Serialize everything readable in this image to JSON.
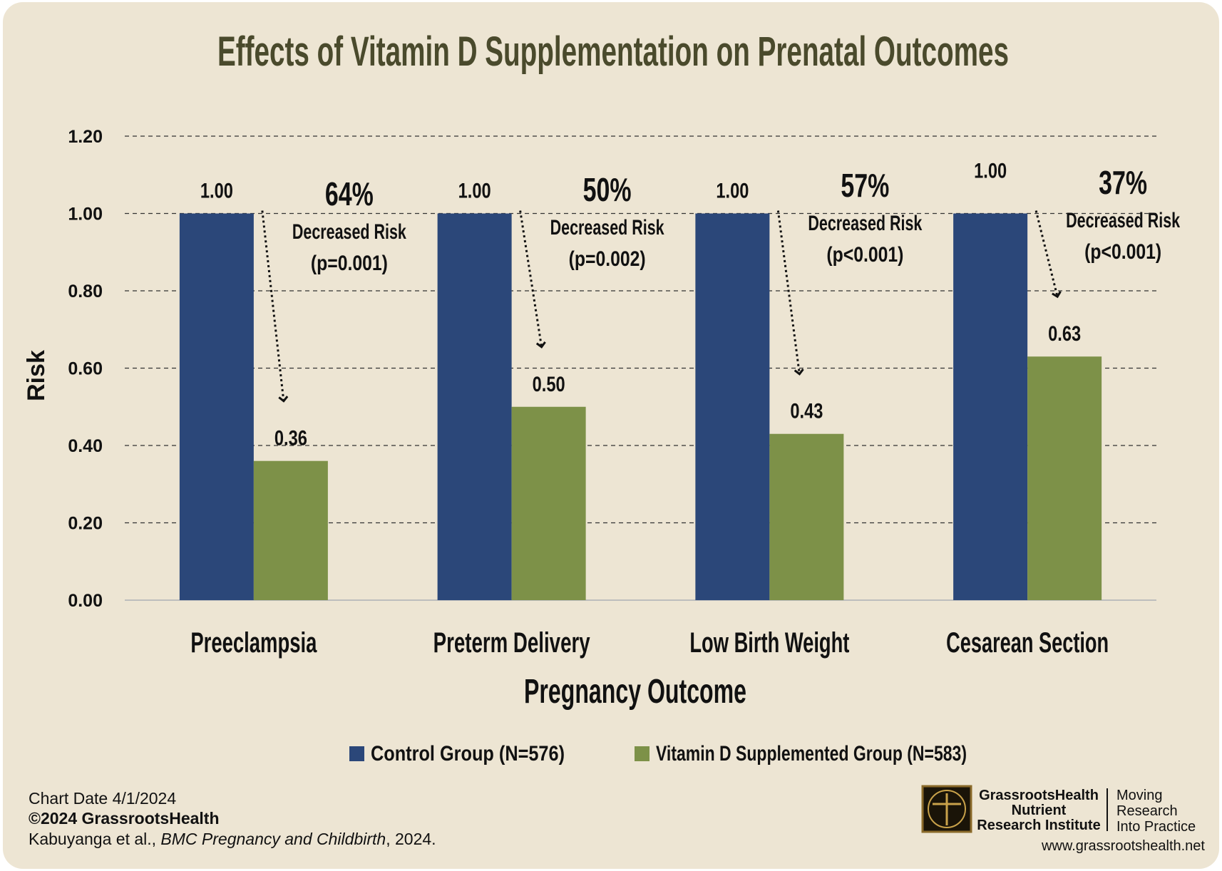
{
  "chart_data": {
    "type": "bar",
    "title": "Effects of Vitamin D Supplementation on Prenatal Outcomes",
    "xlabel": "Pregnancy Outcome",
    "ylabel": "Risk",
    "ylim": [
      0,
      1.2
    ],
    "yticks": [
      "0.00",
      "0.20",
      "0.40",
      "0.60",
      "0.80",
      "1.00",
      "1.20"
    ],
    "grid": true,
    "legend_position": "bottom",
    "categories": [
      "Preeclampsia",
      "Preterm Delivery",
      "Low Birth Weight",
      "Cesarean Section"
    ],
    "series": [
      {
        "name": "Control Group (N=576)",
        "color": "#2b4779",
        "values": [
          1.0,
          1.0,
          1.0,
          1.0
        ],
        "labels": [
          "1.00",
          "1.00",
          "1.00",
          "1.00"
        ]
      },
      {
        "name": "Vitamin D Supplemented Group (N=583)",
        "color": "#7d9148",
        "values": [
          0.36,
          0.5,
          0.43,
          0.63
        ],
        "labels": [
          "0.36",
          "0.50",
          "0.43",
          "0.63"
        ]
      }
    ],
    "annotations": [
      {
        "percent": "64%",
        "text": "Decreased Risk",
        "p": "(p=0.001)"
      },
      {
        "percent": "50%",
        "text": "Decreased Risk",
        "p": "(p=0.002)"
      },
      {
        "percent": "57%",
        "text": "Decreased Risk",
        "p": "(p<0.001)"
      },
      {
        "percent": "37%",
        "text": "Decreased Risk",
        "p": "(p<0.001)"
      }
    ]
  },
  "footer": {
    "chart_date": "Chart Date 4/1/2024",
    "copyright": "©2024 GrassrootsHealth",
    "citation_authors": "Kabuyanga  et al., ",
    "citation_journal": "BMC Pregnancy and Childbirth",
    "citation_year": ", 2024."
  },
  "logo": {
    "line1": "GrassrootsHealth",
    "line2": "Nutrient",
    "line3": "Research Institute",
    "tag1": "Moving",
    "tag2": "Research",
    "tag3": "Into Practice",
    "url": "www.grassrootshealth.net"
  }
}
